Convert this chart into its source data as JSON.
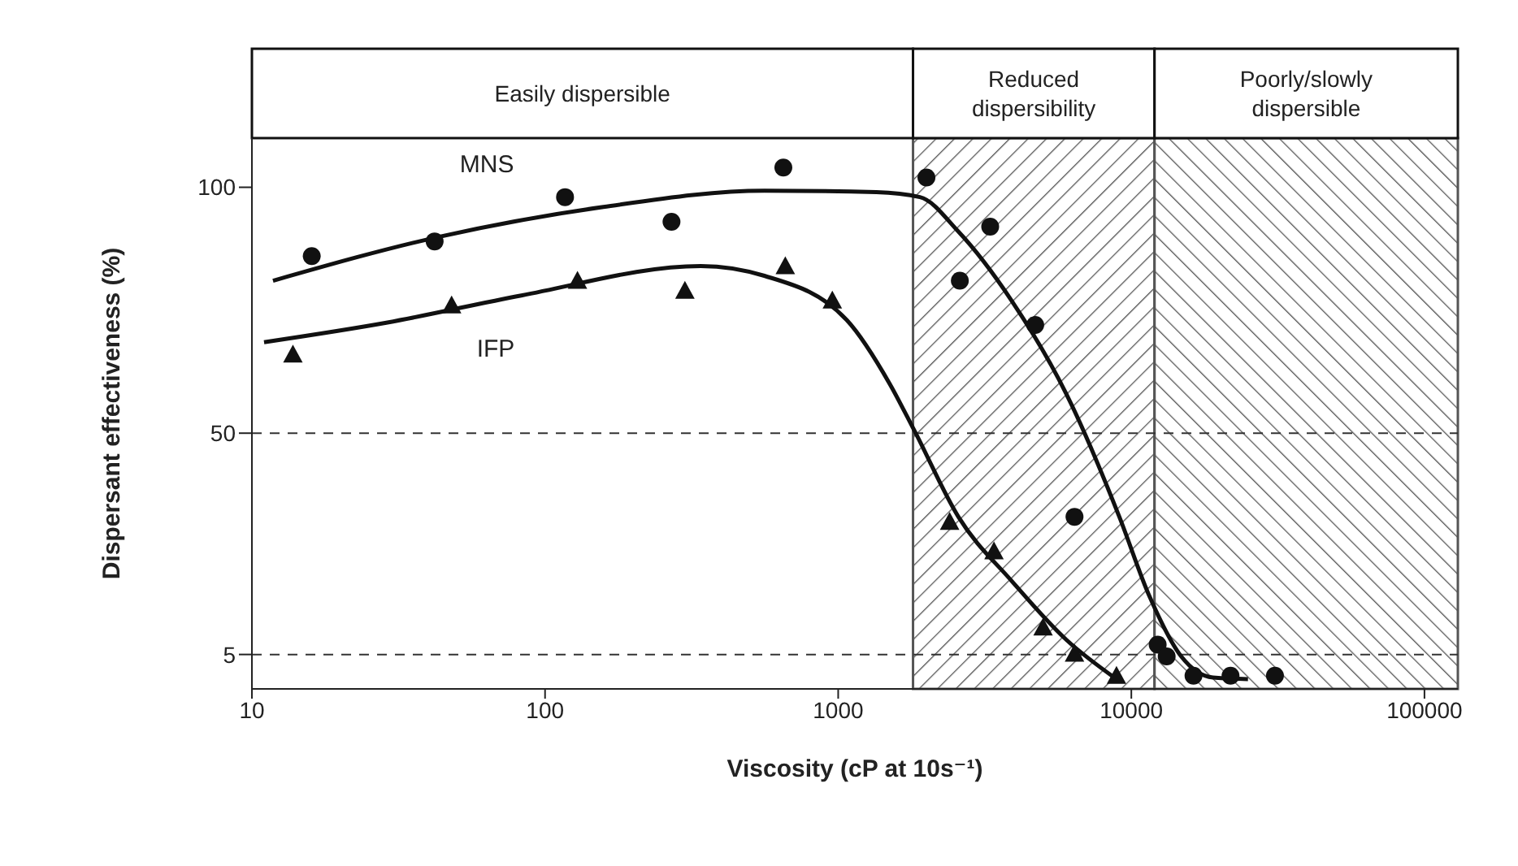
{
  "chart_data": {
    "type": "scatter",
    "xlabel": "Viscosity (cP at 10s⁻¹)",
    "ylabel": "Dispersant effectiveness (%)",
    "log": "x",
    "xlim": [
      10,
      130000
    ],
    "xticks": [
      10,
      100,
      1000,
      10000,
      100000
    ],
    "ylim": [
      -2,
      110
    ],
    "yticks": [
      5,
      50,
      100
    ],
    "grid": false,
    "legend": false,
    "series": [
      {
        "name": "MNS",
        "marker": "circle",
        "color": "#111111",
        "x": [
          16,
          42,
          117,
          270,
          650,
          2000,
          2600,
          3300,
          4700,
          6400,
          12300,
          13200,
          16300,
          21800,
          30900
        ],
        "values": [
          86,
          89,
          98,
          93,
          104,
          102,
          81,
          92,
          72,
          33,
          7,
          4.6,
          0.7,
          0.7,
          0.7
        ]
      },
      {
        "type": "line",
        "marker": "none",
        "line_style": "solid",
        "color": "#111111",
        "x": [
          11.8,
          44,
          158,
          560,
          1350,
          1900,
          2570,
          3900,
          6000,
          9100,
          11500,
          14800,
          19000,
          25000
        ],
        "values": [
          81,
          90,
          96,
          99.3,
          99,
          98,
          91,
          77,
          58,
          33,
          17,
          4.6,
          0.3,
          0
        ]
      },
      {
        "name": "IFP",
        "marker": "triangle",
        "color": "#111111",
        "x": [
          13.8,
          48,
          129,
          300,
          660,
          955,
          2400,
          3400,
          5000,
          6400,
          8900
        ],
        "values": [
          66,
          76,
          81,
          79,
          84,
          77,
          32,
          26,
          10.5,
          5.2,
          0.7
        ]
      },
      {
        "type": "line",
        "marker": "none",
        "line_style": "solid",
        "color": "#111111",
        "x": [
          11,
          29,
          83,
          340,
          560,
          1070,
          1500,
          1820,
          2570,
          3900,
          6000,
          8900
        ],
        "values": [
          68.5,
          72.5,
          78,
          84,
          82,
          73,
          60,
          50.5,
          33,
          20,
          8,
          0
        ]
      }
    ],
    "ref_lines": [
      {
        "axis": "y",
        "value": 50,
        "line_style": "dashed",
        "color": "#333333"
      },
      {
        "axis": "y",
        "value": 5,
        "line_style": "dashed",
        "color": "#333333"
      }
    ],
    "annotations": [
      "Easily dispersible"
    ],
    "bands": [
      {
        "axis": "x",
        "from": 1800,
        "to": 12000,
        "label": "Reduced dispersibility",
        "color": "#555555"
      },
      {
        "axis": "x",
        "from": 12000,
        "to": 130000,
        "label": "Poorly/slowly dispersible",
        "color": "#555555"
      }
    ]
  }
}
